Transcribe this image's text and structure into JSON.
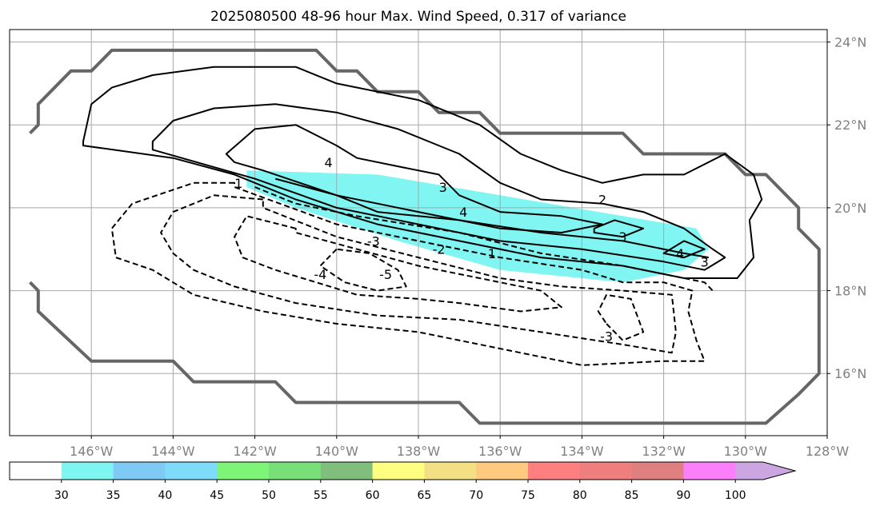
{
  "chart_data": {
    "type": "contour-map",
    "title": "2025080500 48-96 hour Max. Wind Speed, 0.317 of variance",
    "x_range": [
      -148,
      -128
    ],
    "y_range": [
      14.5,
      24.3
    ],
    "lon_ticks": [
      {
        "value": -146,
        "label": "146°W"
      },
      {
        "value": -144,
        "label": "144°W"
      },
      {
        "value": -142,
        "label": "142°W"
      },
      {
        "value": -140,
        "label": "140°W"
      },
      {
        "value": -138,
        "label": "138°W"
      },
      {
        "value": -136,
        "label": "136°W"
      },
      {
        "value": -134,
        "label": "134°W"
      },
      {
        "value": -132,
        "label": "132°W"
      },
      {
        "value": -130,
        "label": "130°W"
      },
      {
        "value": -128,
        "label": "128°W"
      }
    ],
    "lat_ticks": [
      {
        "value": 16,
        "label": "16°N"
      },
      {
        "value": 18,
        "label": "18°N"
      },
      {
        "value": 20,
        "label": "20°N"
      },
      {
        "value": 22,
        "label": "22°N"
      },
      {
        "value": 24,
        "label": "24°N"
      }
    ],
    "grid": true,
    "filled_region": {
      "color": "#80f5f2",
      "level": 30,
      "lonlat": [
        [
          -142.2,
          20.9
        ],
        [
          -139,
          20.8
        ],
        [
          -136,
          20.3
        ],
        [
          -133,
          19.8
        ],
        [
          -131.2,
          19.5
        ],
        [
          -130.9,
          19.0
        ],
        [
          -131.5,
          18.5
        ],
        [
          -133,
          18.2
        ],
        [
          -136,
          18.5
        ],
        [
          -138.5,
          19.2
        ],
        [
          -141,
          20.0
        ],
        [
          -142.2,
          20.5
        ]
      ]
    },
    "boundary": {
      "color": "#666666",
      "top": [
        [
          -147.5,
          21.8
        ],
        [
          -147.3,
          22.0
        ],
        [
          -147.3,
          22.5
        ],
        [
          -146.5,
          23.3
        ],
        [
          -146,
          23.3
        ],
        [
          -145.5,
          23.8
        ],
        [
          -140.5,
          23.8
        ],
        [
          -140,
          23.3
        ],
        [
          -139.5,
          23.3
        ],
        [
          -139,
          22.8
        ],
        [
          -138,
          22.8
        ],
        [
          -137.5,
          22.3
        ],
        [
          -136.5,
          22.3
        ],
        [
          -136,
          21.8
        ],
        [
          -133,
          21.8
        ],
        [
          -132.5,
          21.3
        ],
        [
          -130.5,
          21.3
        ],
        [
          -130,
          20.8
        ],
        [
          -129.5,
          20.8
        ],
        [
          -128.7,
          20.0
        ],
        [
          -128.7,
          19.5
        ],
        [
          -128.2,
          19.0
        ],
        [
          -128.2,
          16.0
        ],
        [
          -128.7,
          15.5
        ],
        [
          -129.5,
          14.8
        ],
        [
          -136.5,
          14.8
        ],
        [
          -137,
          15.3
        ],
        [
          -141,
          15.3
        ],
        [
          -141.5,
          15.8
        ],
        [
          -143.5,
          15.8
        ],
        [
          -144,
          16.3
        ],
        [
          -146,
          16.3
        ],
        [
          -147.3,
          17.5
        ],
        [
          -147.3,
          18.0
        ],
        [
          -147.5,
          18.2
        ]
      ]
    },
    "solid_contours": [
      {
        "level": 1,
        "lonlat": [
          [
            -141.5,
            20.7
          ],
          [
            -140,
            20.3
          ],
          [
            -139,
            19.9
          ],
          [
            -137,
            19.7
          ],
          [
            -135,
            19.4
          ],
          [
            -133,
            19.2
          ],
          [
            -131.5,
            18.9
          ],
          [
            -130.9,
            18.8
          ]
        ]
      },
      {
        "level": 2,
        "lonlat": [
          [
            -146.2,
            21.6
          ],
          [
            -146,
            22.5
          ],
          [
            -145.5,
            22.9
          ],
          [
            -144.5,
            23.2
          ],
          [
            -143,
            23.4
          ],
          [
            -141,
            23.4
          ],
          [
            -140,
            23.0
          ],
          [
            -138,
            22.6
          ],
          [
            -136.5,
            22.0
          ],
          [
            -135.5,
            21.3
          ],
          [
            -134.5,
            20.9
          ],
          [
            -133.5,
            20.6
          ],
          [
            -132.5,
            20.8
          ],
          [
            -131.5,
            20.8
          ],
          [
            -130.5,
            21.3
          ],
          [
            -129.8,
            20.8
          ],
          [
            -129.6,
            20.2
          ],
          [
            -129.9,
            19.7
          ],
          [
            -129.8,
            18.8
          ],
          [
            -130.2,
            18.3
          ],
          [
            -131.5,
            18.3
          ],
          [
            -133,
            18.6
          ],
          [
            -135,
            18.8
          ],
          [
            -137,
            19.2
          ],
          [
            -139,
            19.6
          ],
          [
            -141,
            20.2
          ],
          [
            -142.5,
            20.8
          ],
          [
            -144,
            21.2
          ],
          [
            -146.2,
            21.5
          ]
        ]
      },
      {
        "level": 3,
        "lonlat": [
          [
            -144.5,
            21.6
          ],
          [
            -144,
            22.1
          ],
          [
            -143,
            22.4
          ],
          [
            -141.5,
            22.5
          ],
          [
            -140,
            22.3
          ],
          [
            -138.5,
            21.9
          ],
          [
            -137,
            21.3
          ],
          [
            -136,
            20.6
          ],
          [
            -135,
            20.2
          ],
          [
            -133.5,
            20.1
          ],
          [
            -132.5,
            19.9
          ],
          [
            -131.5,
            19.5
          ],
          [
            -130.8,
            19.0
          ],
          [
            -130.5,
            18.8
          ],
          [
            -131,
            18.5
          ],
          [
            -132,
            18.7
          ],
          [
            -134,
            19.0
          ],
          [
            -136,
            19.2
          ],
          [
            -138,
            19.6
          ],
          [
            -140,
            20.0
          ],
          [
            -142,
            20.7
          ],
          [
            -144.5,
            21.4
          ]
        ]
      },
      {
        "level": 4,
        "lonlat": [
          [
            -142.7,
            21.3
          ],
          [
            -142,
            21.9
          ],
          [
            -141,
            22.0
          ],
          [
            -140,
            21.5
          ],
          [
            -139.5,
            21.2
          ],
          [
            -138.5,
            21.0
          ],
          [
            -137.5,
            20.8
          ],
          [
            -137,
            20.3
          ],
          [
            -136,
            19.9
          ],
          [
            -134.5,
            19.8
          ],
          [
            -133.5,
            19.6
          ],
          [
            -134.5,
            19.4
          ],
          [
            -136,
            19.5
          ],
          [
            -138,
            19.9
          ],
          [
            -140,
            20.3
          ],
          [
            -141.8,
            20.9
          ],
          [
            -142.5,
            21.1
          ]
        ]
      },
      {
        "level": 3,
        "lonlat": [
          [
            -133.7,
            19.5
          ],
          [
            -133.2,
            19.7
          ],
          [
            -132.5,
            19.5
          ],
          [
            -133,
            19.3
          ],
          [
            -133.7,
            19.4
          ]
        ]
      },
      {
        "level": 4,
        "lonlat": [
          [
            -132,
            18.9
          ],
          [
            -131.5,
            19.2
          ],
          [
            -131,
            19.0
          ],
          [
            -131.5,
            18.8
          ],
          [
            -132,
            18.9
          ]
        ]
      }
    ],
    "dashed_contours": [
      {
        "level": -1,
        "lonlat": [
          [
            -142,
            20.5
          ],
          [
            -141,
            20.1
          ],
          [
            -139.5,
            19.8
          ],
          [
            -137,
            19.4
          ],
          [
            -135,
            18.9
          ],
          [
            -133,
            18.6
          ],
          [
            -131,
            18.2
          ],
          [
            -130.8,
            18.0
          ]
        ]
      },
      {
        "level": -2,
        "lonlat": [
          [
            -142.5,
            20.6
          ],
          [
            -143.5,
            20.6
          ],
          [
            -145,
            20.1
          ],
          [
            -145.5,
            19.5
          ],
          [
            -145.4,
            18.8
          ],
          [
            -144.5,
            18.5
          ],
          [
            -143.5,
            17.9
          ],
          [
            -141.8,
            17.5
          ],
          [
            -140,
            17.2
          ],
          [
            -138,
            17.0
          ],
          [
            -136,
            16.6
          ],
          [
            -134,
            16.2
          ],
          [
            -132,
            16.3
          ],
          [
            -131,
            16.3
          ],
          [
            -131.2,
            16.8
          ],
          [
            -131.4,
            17.5
          ],
          [
            -131.3,
            18.0
          ],
          [
            -132,
            18.2
          ],
          [
            -133,
            18.2
          ],
          [
            -134,
            18.5
          ],
          [
            -136,
            18.8
          ],
          [
            -138,
            19.2
          ],
          [
            -140,
            19.6
          ],
          [
            -142.5,
            20.5
          ]
        ]
      },
      {
        "level": -3,
        "lonlat": [
          [
            -141.8,
            20.2
          ],
          [
            -143,
            20.3
          ],
          [
            -144,
            19.9
          ],
          [
            -144.3,
            19.4
          ],
          [
            -144,
            18.9
          ],
          [
            -143.5,
            18.5
          ],
          [
            -142.5,
            18.1
          ],
          [
            -141,
            17.7
          ],
          [
            -139,
            17.4
          ],
          [
            -137,
            17.3
          ],
          [
            -135,
            17.0
          ],
          [
            -133,
            16.7
          ],
          [
            -131.8,
            16.5
          ],
          [
            -131.7,
            17.0
          ],
          [
            -131.8,
            17.9
          ],
          [
            -133,
            18.0
          ],
          [
            -134.5,
            18.1
          ],
          [
            -136,
            18.3
          ],
          [
            -138,
            18.8
          ],
          [
            -140,
            19.3
          ],
          [
            -141.8,
            20.0
          ]
        ]
      },
      {
        "level": -4,
        "lonlat": [
          [
            -141,
            19.5
          ],
          [
            -142.2,
            19.8
          ],
          [
            -142.5,
            19.3
          ],
          [
            -142.3,
            18.8
          ],
          [
            -141.5,
            18.5
          ],
          [
            -140.5,
            18.2
          ],
          [
            -139.5,
            17.9
          ],
          [
            -138,
            17.8
          ],
          [
            -137,
            17.7
          ],
          [
            -135.5,
            17.5
          ],
          [
            -134.5,
            17.6
          ],
          [
            -135,
            18.0
          ],
          [
            -136.5,
            18.3
          ],
          [
            -138,
            18.6
          ],
          [
            -139.5,
            19.0
          ],
          [
            -141,
            19.4
          ]
        ]
      },
      {
        "level": -5,
        "lonlat": [
          [
            -140,
            19.0
          ],
          [
            -140.4,
            18.6
          ],
          [
            -139.8,
            18.2
          ],
          [
            -139,
            18.0
          ],
          [
            -138.3,
            18.1
          ],
          [
            -138.5,
            18.5
          ],
          [
            -139.2,
            18.9
          ],
          [
            -140,
            19.0
          ]
        ]
      },
      {
        "level": -3,
        "lonlat": [
          [
            -133.4,
            17.2
          ],
          [
            -133,
            16.8
          ],
          [
            -132.5,
            17.0
          ],
          [
            -132.8,
            17.8
          ],
          [
            -133.4,
            17.9
          ],
          [
            -133.6,
            17.5
          ],
          [
            -133.4,
            17.2
          ]
        ]
      }
    ],
    "contour_labels": [
      {
        "text": "1",
        "lon": -142.4,
        "lat": 20.6
      },
      {
        "text": "4",
        "lon": -140.2,
        "lat": 21.1
      },
      {
        "text": "3",
        "lon": -137.4,
        "lat": 20.5
      },
      {
        "text": "4",
        "lon": -136.9,
        "lat": 19.9
      },
      {
        "text": "2",
        "lon": -133.5,
        "lat": 20.2
      },
      {
        "text": "3",
        "lon": -133.0,
        "lat": 19.3
      },
      {
        "text": "4",
        "lon": -131.6,
        "lat": 18.9
      },
      {
        "text": "3",
        "lon": -131.0,
        "lat": 18.7
      },
      {
        "text": "1",
        "lon": -136.2,
        "lat": 18.9
      },
      {
        "text": "-3",
        "lon": -139.1,
        "lat": 19.2
      },
      {
        "text": "-2",
        "lon": -137.5,
        "lat": 19.0
      },
      {
        "text": "-4",
        "lon": -140.4,
        "lat": 18.4
      },
      {
        "text": "-5",
        "lon": -138.8,
        "lat": 18.4
      },
      {
        "text": "-3",
        "lon": -133.4,
        "lat": 16.9
      }
    ],
    "colorbar": {
      "tick_labels": [
        "30",
        "35",
        "40",
        "45",
        "50",
        "55",
        "60",
        "65",
        "70",
        "75",
        "80",
        "85",
        "90",
        "100"
      ],
      "colors": [
        "#ffffff",
        "#7ef5f0",
        "#7fcaf5",
        "#7fdcf8",
        "#7ef579",
        "#79e079",
        "#7fbe7d",
        "#fefe80",
        "#f3e085",
        "#fdca80",
        "#fe7f7f",
        "#ef7f7f",
        "#df7f7f",
        "#fb7ffb",
        "#cba6e0"
      ]
    }
  }
}
